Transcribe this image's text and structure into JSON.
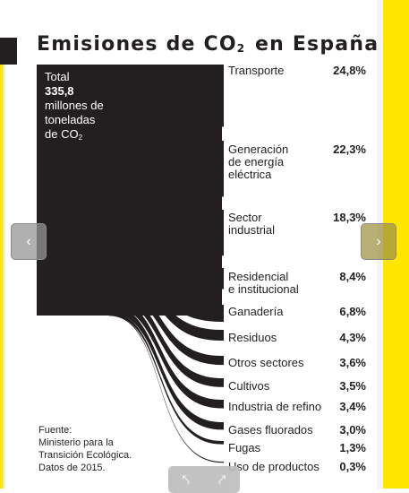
{
  "title": {
    "main": "Emisiones de CO",
    "sub": "2",
    "rest": " en España"
  },
  "total": {
    "label": "Total",
    "value": "335,8",
    "unit_lines": [
      "millones de",
      "toneladas"
    ],
    "unit_co2_prefix": "de CO",
    "unit_co2_sub": "2"
  },
  "chart_data": {
    "type": "sankey",
    "title": "Emisiones de CO2 en España",
    "total": 335.8,
    "unit": "millones de toneladas de CO2",
    "categories": [
      "Transporte",
      "Generación de energía eléctrica",
      "Sector industrial",
      "Residencial e institucional",
      "Ganadería",
      "Residuos",
      "Otros sectores",
      "Cultivos",
      "Industria de refino",
      "Gases fluorados",
      "Fugas",
      "Uso de productos"
    ],
    "values": [
      24.8,
      22.3,
      18.3,
      8.4,
      6.8,
      4.3,
      3.6,
      3.5,
      3.4,
      3.0,
      1.3,
      0.3
    ]
  },
  "rows": [
    {
      "lines": [
        "Transporte"
      ],
      "pct": "24,8%"
    },
    {
      "lines": [
        "Generación",
        "de energía",
        "eléctrica"
      ],
      "pct": "22,3%"
    },
    {
      "lines": [
        "Sector",
        "industrial"
      ],
      "pct": "18,3%"
    },
    {
      "lines": [
        "Residencial",
        "e institucional"
      ],
      "pct": "8,4%"
    },
    {
      "lines": [
        "Ganadería"
      ],
      "pct": "6,8%"
    },
    {
      "lines": [
        "Residuos"
      ],
      "pct": "4,3%"
    },
    {
      "lines": [
        "Otros sectores"
      ],
      "pct": "3,6%"
    },
    {
      "lines": [
        "Cultivos"
      ],
      "pct": "3,5%"
    },
    {
      "lines": [
        "Industria de refino"
      ],
      "pct": "3,4%"
    },
    {
      "lines": [
        "Gases fluorados"
      ],
      "pct": "3,0%"
    },
    {
      "lines": [
        "Fugas"
      ],
      "pct": "1,3%"
    },
    {
      "lines": [
        "Uso de productos"
      ],
      "pct": "0,3%"
    }
  ],
  "source": [
    "Fuente:",
    "Ministerio para la",
    "Transición Ecológica.",
    "Datos de 2015."
  ],
  "nav": {
    "prev_icon": "‹",
    "next_icon": "›",
    "bottom_left_icon": "⤣",
    "bottom_right_icon": "⤤"
  },
  "colors": {
    "ink": "#231f20",
    "accent_yellow": "#ffe600",
    "background": "#ffffff"
  }
}
